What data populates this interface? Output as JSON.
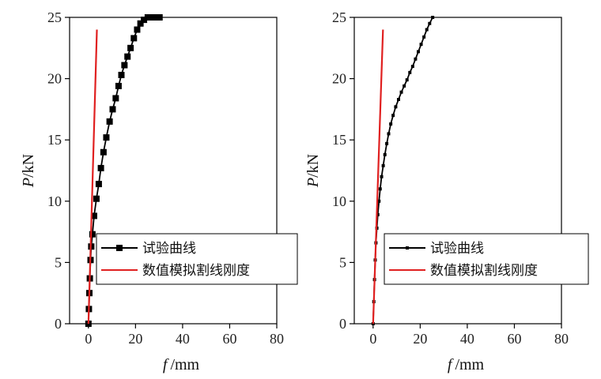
{
  "chart_data": [
    {
      "type": "line",
      "xlabel_var": "f",
      "xlabel_unit": "/mm",
      "ylabel_var": "P",
      "ylabel_unit": "/kN",
      "xlim": [
        -8,
        80
      ],
      "ylim": [
        0,
        25
      ],
      "xticks": [
        0,
        20,
        40,
        60,
        80
      ],
      "yticks": [
        0,
        5,
        10,
        15,
        20,
        25
      ],
      "legend_position": "lower-right",
      "series": [
        {
          "name": "试验曲线",
          "color": "#000000",
          "marker": "square",
          "x": [
            0,
            0.2,
            0.4,
            0.6,
            0.9,
            1.2,
            1.7,
            2.4,
            3.4,
            4.4,
            5.3,
            6.4,
            7.6,
            9.0,
            10.3,
            11.6,
            12.8,
            14.0,
            15.3,
            16.6,
            17.9,
            19.3,
            20.7,
            22.1,
            23.6,
            25.2,
            26.8,
            28.5,
            30.2
          ],
          "y": [
            0,
            1.2,
            2.5,
            3.7,
            5.2,
            6.3,
            7.3,
            8.8,
            10.2,
            11.4,
            12.7,
            14.0,
            15.2,
            16.5,
            17.5,
            18.4,
            19.4,
            20.3,
            21.1,
            21.8,
            22.5,
            23.3,
            24.0,
            24.5,
            24.8,
            25.0,
            25.0,
            25.0,
            25.0
          ]
        },
        {
          "name": "数值模拟割线刚度",
          "color": "#e02020",
          "marker": "none",
          "x": [
            0,
            3.6
          ],
          "y": [
            0,
            24
          ]
        }
      ]
    },
    {
      "type": "line",
      "xlabel_var": "f",
      "xlabel_unit": "/mm",
      "ylabel_var": "P",
      "ylabel_unit": "/kN",
      "xlim": [
        -8,
        80
      ],
      "ylim": [
        0,
        25
      ],
      "xticks": [
        0,
        20,
        40,
        60,
        80
      ],
      "yticks": [
        0,
        5,
        10,
        15,
        20,
        25
      ],
      "legend_position": "lower-right",
      "series": [
        {
          "name": "试验曲线",
          "color": "#000000",
          "marker": "small-square",
          "x": [
            0,
            0.3,
            0.6,
            0.9,
            1.2,
            1.6,
            2.0,
            2.5,
            3.0,
            3.6,
            4.3,
            5.0,
            5.8,
            6.6,
            7.5,
            8.5,
            9.6,
            10.8,
            12.0,
            13.2,
            14.4,
            15.6,
            16.8,
            18.0,
            19.2,
            20.4,
            21.6,
            22.8,
            24.0,
            25.3
          ],
          "y": [
            0,
            1.8,
            3.6,
            5.2,
            6.6,
            7.8,
            8.9,
            10.0,
            11.0,
            12.0,
            12.9,
            13.8,
            14.7,
            15.5,
            16.3,
            17.0,
            17.7,
            18.3,
            18.9,
            19.4,
            19.9,
            20.5,
            21.0,
            21.6,
            22.2,
            22.8,
            23.4,
            24.0,
            24.5,
            25.0
          ]
        },
        {
          "name": "数值模拟割线刚度",
          "color": "#e02020",
          "marker": "none",
          "x": [
            0,
            4.2
          ],
          "y": [
            0,
            24
          ]
        }
      ]
    }
  ]
}
